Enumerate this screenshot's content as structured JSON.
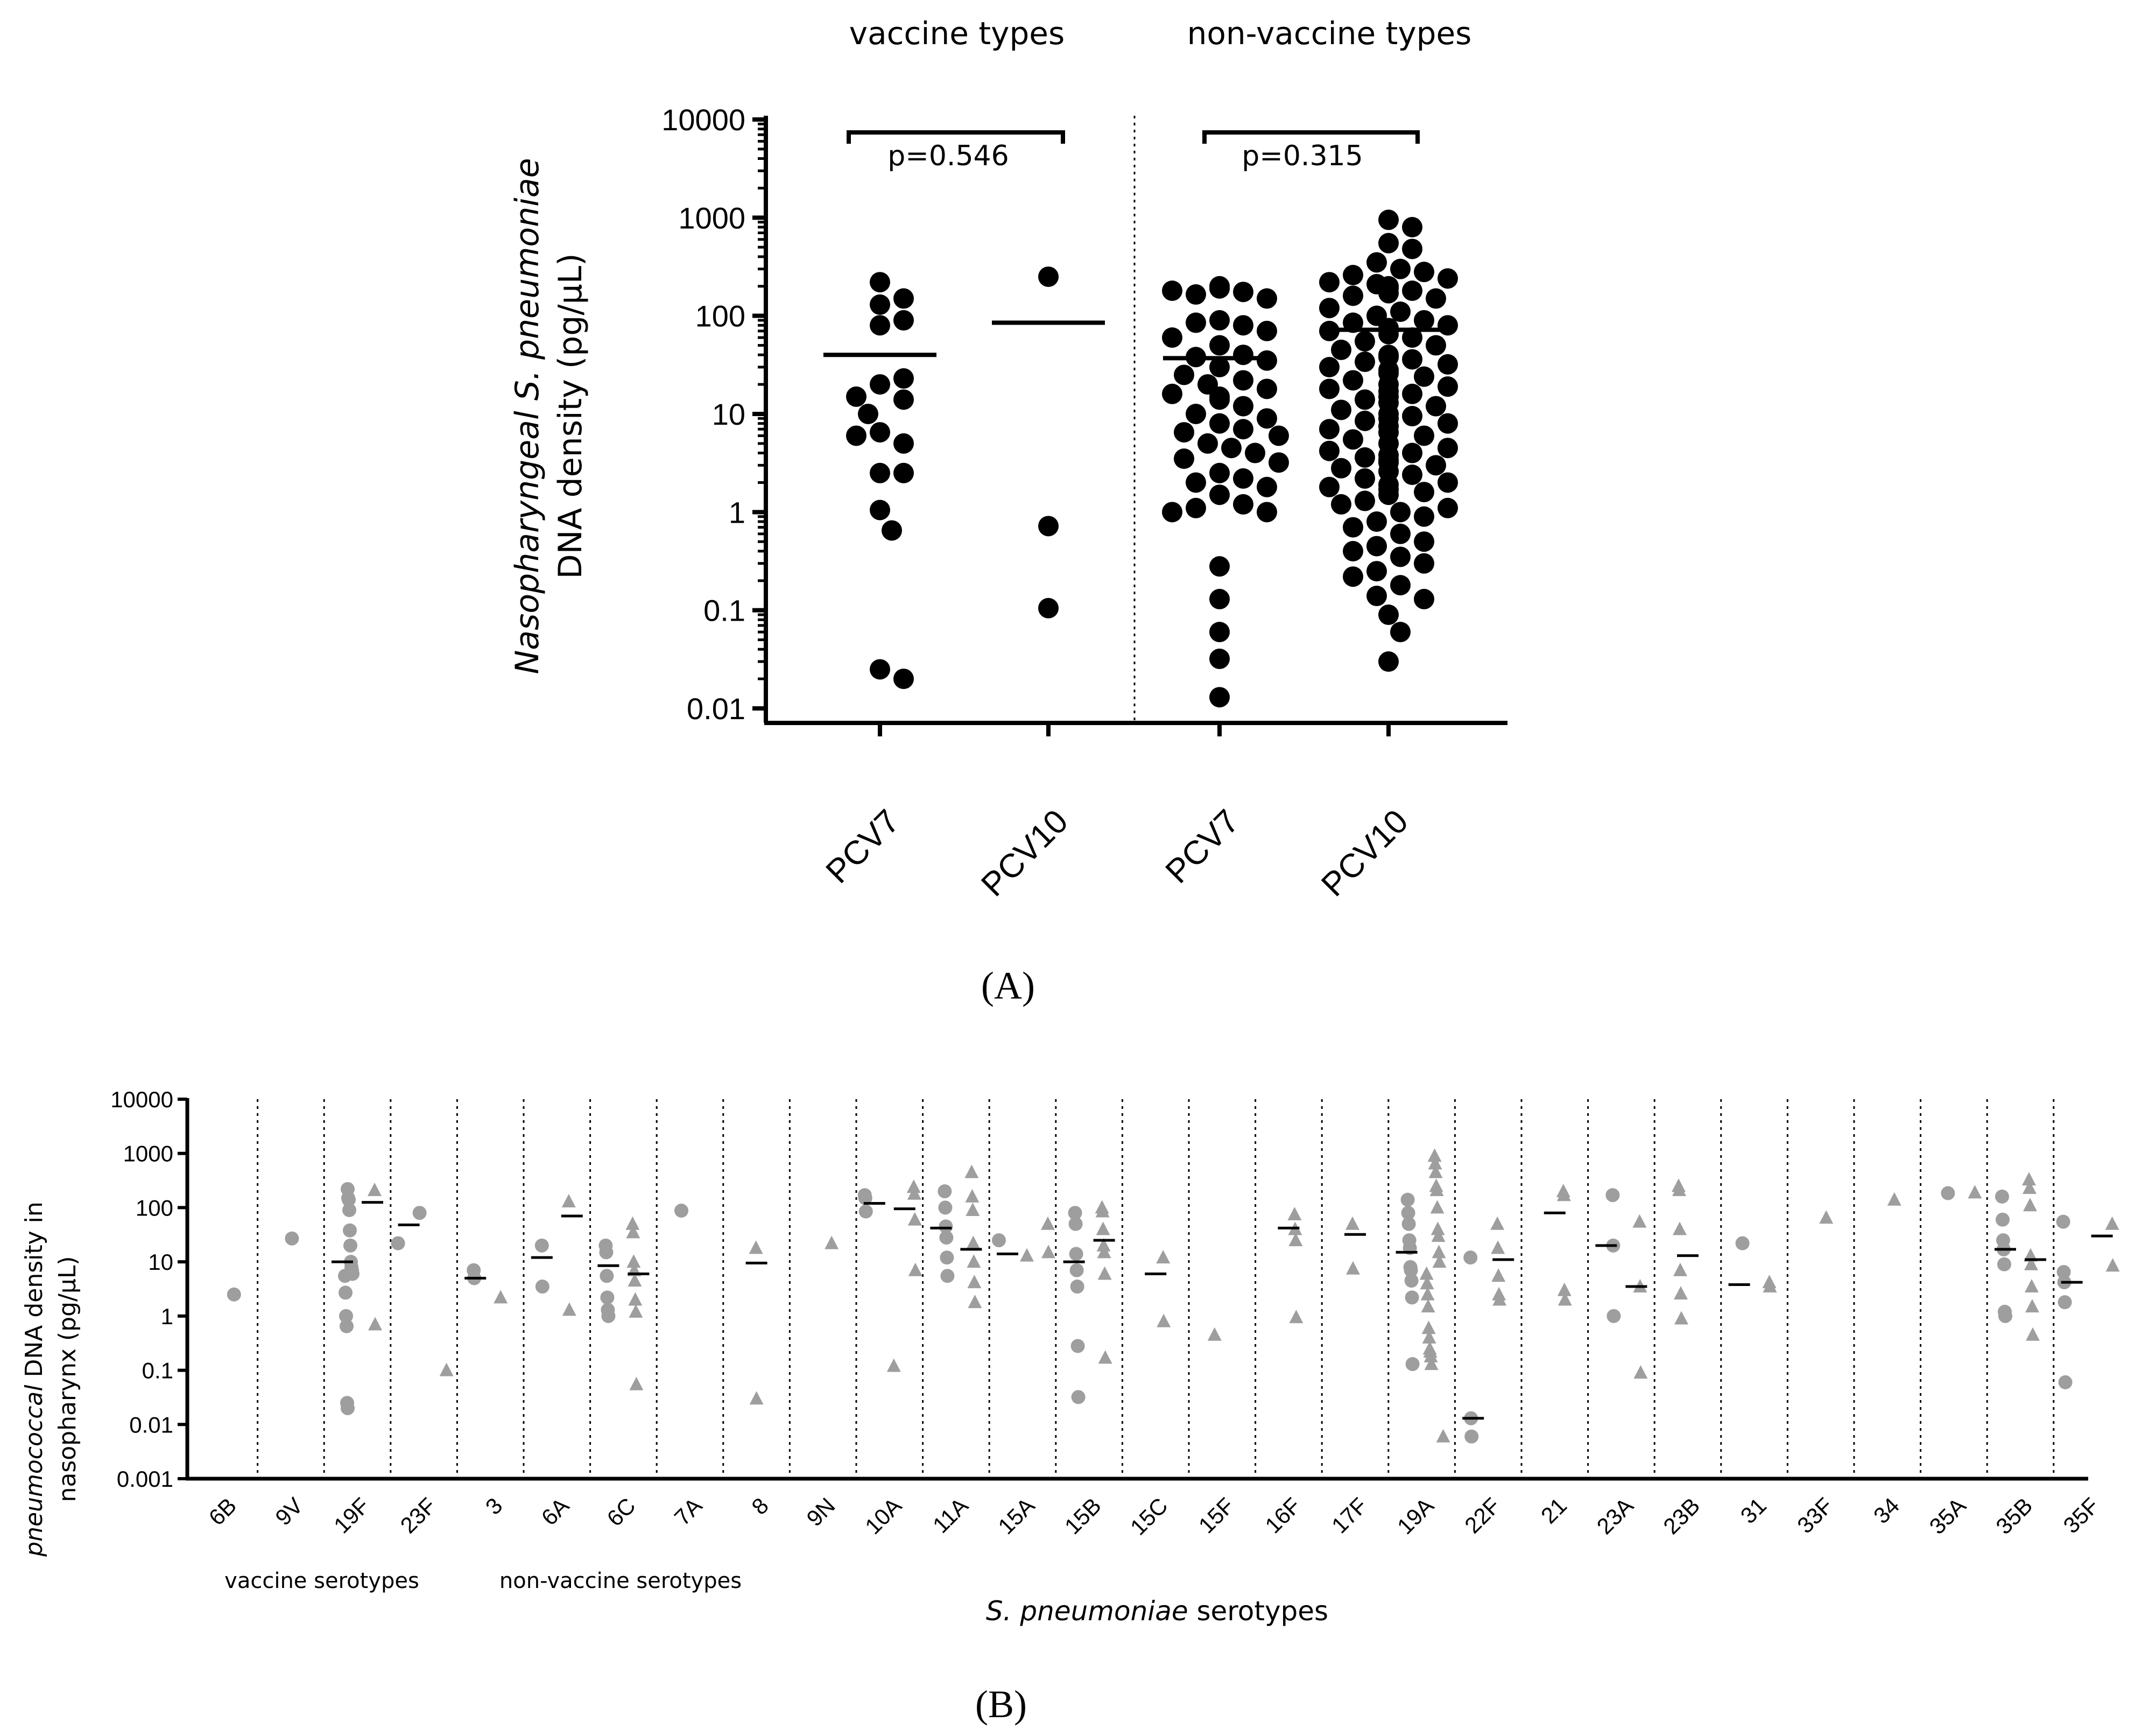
{
  "panel_a": {
    "group_labels": [
      "vaccine types",
      "non-vaccine types"
    ],
    "ylabel_italic": "Nasopharyngeal S. pneumoniae",
    "ylabel_plain": "DNA density (pg/µL)",
    "y_ticks": [
      "10000",
      "1000",
      "100",
      "10",
      "1",
      "0.1",
      "0.01"
    ],
    "categories": [
      "PCV7",
      "PCV10",
      "PCV7",
      "PCV10"
    ],
    "pvalues": [
      "p=0.546",
      "p=0.315"
    ],
    "caption": "(A)"
  },
  "panel_b": {
    "ylabel_italic": "pneumococcal",
    "ylabel_line1_rest": " DNA density in",
    "ylabel_line2": "nasopharynx (pg/µL)",
    "y_ticks": [
      "10000",
      "1000",
      "100",
      "10",
      "1",
      "0.1",
      "0.01",
      "0.001"
    ],
    "serotypes": [
      "6B",
      "9V",
      "19F",
      "23F",
      "3",
      "6A",
      "6C",
      "7A",
      "8",
      "9N",
      "10A",
      "11A",
      "15A",
      "15B",
      "15C",
      "15F",
      "16F",
      "17F",
      "19A",
      "22F",
      "21",
      "23A",
      "23B",
      "31",
      "33F",
      "34",
      "35A",
      "35B",
      "35F"
    ],
    "vaccine_label": "vaccine serotypes",
    "nonvaccine_label": "non-vaccine serotypes",
    "xlabel_italic": "S. pneumoniae",
    "xlabel_rest": " serotypes",
    "caption": "(B)"
  },
  "colors": {
    "dots_a": "#000000",
    "dots_b": "#9e9e9e"
  },
  "chart_data": [
    {
      "type": "scatter",
      "scale": "log",
      "ylim": [
        0.01,
        10000
      ],
      "categories": [
        "PCV7 (vaccine types)",
        "PCV10 (vaccine types)",
        "PCV7 (non-vaccine types)",
        "PCV10 (non-vaccine types)"
      ],
      "series": [
        {
          "values": [
            220,
            130,
            150,
            80,
            90,
            20,
            23,
            14,
            15,
            6.5,
            5,
            6,
            10,
            2.5,
            2.5,
            1.05,
            0.65,
            0.025,
            0.02
          ],
          "median": 40
        },
        {
          "values": [
            250,
            0.72,
            0.105
          ],
          "median": 85
        },
        {
          "values": [
            200,
            175,
            165,
            150,
            180,
            190,
            90,
            80,
            85,
            70,
            60,
            50,
            40,
            38,
            35,
            30,
            25,
            22,
            20,
            18,
            16,
            15,
            14,
            12,
            10,
            9,
            8,
            7,
            6.5,
            6,
            5,
            4.5,
            4,
            3.5,
            3.2,
            2.5,
            2.2,
            2,
            1.8,
            1.5,
            1.2,
            1.1,
            1.0,
            1.0,
            0.28,
            0.13,
            0.06,
            0.032,
            0.013
          ],
          "median": 37
        },
        {
          "values": [
            950,
            800,
            550,
            480,
            350,
            300,
            280,
            260,
            240,
            220,
            210,
            200,
            190,
            180,
            170,
            160,
            150,
            120,
            110,
            100,
            90,
            85,
            80,
            75,
            70,
            65,
            60,
            55,
            50,
            45,
            40,
            38,
            36,
            34,
            32,
            30,
            28,
            26,
            24,
            22,
            20,
            19,
            18,
            17,
            16,
            15,
            14,
            13,
            12,
            11,
            10,
            9.5,
            9,
            8.5,
            8,
            7.5,
            7,
            6.5,
            6,
            5.5,
            5,
            4.5,
            4.2,
            4,
            3.8,
            3.6,
            3.4,
            3.2,
            3,
            2.8,
            2.6,
            2.4,
            2.2,
            2,
            1.9,
            1.8,
            1.7,
            1.6,
            1.5,
            1.3,
            1.2,
            1.1,
            1.0,
            0.9,
            0.8,
            0.7,
            0.6,
            0.5,
            0.45,
            0.4,
            0.35,
            0.3,
            0.25,
            0.22,
            0.18,
            0.14,
            0.13,
            0.09,
            0.06,
            0.03
          ],
          "median": 72
        }
      ],
      "annotations": [
        "p=0.546",
        "p=0.315"
      ]
    },
    {
      "type": "scatter",
      "scale": "log",
      "ylim": [
        0.001,
        10000
      ],
      "categories": [
        "6B",
        "9V",
        "19F",
        "23F",
        "3",
        "6A",
        "6C",
        "7A",
        "8",
        "9N",
        "10A",
        "11A",
        "15A",
        "15B",
        "15C",
        "15F",
        "16F",
        "17F",
        "19A",
        "22F",
        "21",
        "23A",
        "23B",
        "31",
        "33F",
        "34",
        "35A",
        "35B",
        "35F"
      ],
      "series": [
        {
          "category": "6B",
          "circles": [
            2.5
          ],
          "triangles": []
        },
        {
          "category": "9V",
          "circles": [
            27
          ],
          "triangles": []
        },
        {
          "category": "19F",
          "circles": [
            220,
            150,
            140,
            90,
            38,
            20,
            10,
            8,
            7,
            6,
            5.5,
            2.7,
            1.0,
            0.65,
            0.025,
            0.02
          ],
          "triangles": [
            210,
            0.7
          ],
          "medians": [
            10,
            125
          ]
        },
        {
          "category": "23F",
          "circles": [
            80,
            22
          ],
          "triangles": [
            0.1
          ],
          "medians": [
            48
          ]
        },
        {
          "category": "3",
          "circles": [
            7,
            5
          ],
          "triangles": [
            2.2
          ],
          "medians": [
            5
          ]
        },
        {
          "category": "6A",
          "circles": [
            20,
            3.5
          ],
          "triangles": [
            130,
            1.3
          ],
          "medians": [
            12,
            70
          ]
        },
        {
          "category": "6C",
          "circles": [
            20,
            15,
            5.5,
            2.2,
            1.3,
            1.0
          ],
          "triangles": [
            50,
            35,
            10,
            7,
            4.5,
            2.0,
            1.2,
            0.055
          ],
          "medians": [
            8.5,
            6
          ]
        },
        {
          "category": "7A",
          "circles": [
            88
          ],
          "triangles": []
        },
        {
          "category": "8",
          "circles": [],
          "triangles": [
            18,
            0.03
          ],
          "medians": [
            9.5
          ]
        },
        {
          "category": "9N",
          "circles": [],
          "triangles": [
            22
          ]
        },
        {
          "category": "10A",
          "circles": [
            170,
            150,
            85
          ],
          "triangles": [
            240,
            180,
            60,
            7,
            0.12
          ],
          "medians": [
            120,
            95
          ]
        },
        {
          "category": "11A",
          "circles": [
            200,
            100,
            45,
            28,
            12,
            5.5
          ],
          "triangles": [
            450,
            160,
            90,
            22,
            10,
            4.2,
            1.8
          ],
          "medians": [
            42,
            17
          ]
        },
        {
          "category": "15A",
          "circles": [
            25
          ],
          "triangles": [
            50,
            15,
            13
          ],
          "medians": [
            14
          ]
        },
        {
          "category": "15B",
          "circles": [
            80,
            50,
            14,
            7,
            3.5,
            0.28,
            0.032
          ],
          "triangles": [
            100,
            85,
            40,
            20,
            15,
            6,
            0.17
          ],
          "medians": [
            10,
            25
          ]
        },
        {
          "category": "15C",
          "circles": [],
          "triangles": [
            12,
            0.8
          ],
          "medians": [
            6
          ]
        },
        {
          "category": "15F",
          "circles": [],
          "triangles": [
            0.45
          ]
        },
        {
          "category": "16F",
          "circles": [],
          "triangles": [
            75,
            40,
            25,
            0.95
          ],
          "medians": [
            42
          ]
        },
        {
          "category": "17F",
          "circles": [],
          "triangles": [
            50,
            7.5
          ],
          "medians": [
            32
          ]
        },
        {
          "category": "19A",
          "circles": [
            140,
            80,
            50,
            25,
            18,
            8,
            7,
            4.5,
            2.2,
            0.13
          ],
          "triangles": [
            900,
            650,
            450,
            250,
            210,
            100,
            40,
            30,
            15,
            10,
            6,
            4,
            2.5,
            1.5,
            0.6,
            0.4,
            0.25,
            0.22,
            0.18,
            0.13,
            0.006
          ],
          "medians": [
            15
          ]
        },
        {
          "category": "22F",
          "circles": [
            12,
            0.013,
            0.006
          ],
          "triangles": [
            50,
            18,
            5.5,
            2.5,
            2.0
          ],
          "medians": [
            0.013,
            11
          ]
        },
        {
          "category": "21",
          "circles": [],
          "triangles": [
            200,
            170,
            3,
            2.0
          ],
          "medians": [
            80
          ]
        },
        {
          "category": "23A",
          "circles": [
            170,
            20,
            1.0
          ],
          "triangles": [
            55,
            3.5,
            0.09
          ],
          "medians": [
            20,
            3.5
          ]
        },
        {
          "category": "23B",
          "circles": [],
          "triangles": [
            250,
            210,
            40,
            7,
            2.6,
            0.9
          ],
          "medians": [
            13
          ]
        },
        {
          "category": "31",
          "circles": [
            22
          ],
          "triangles": [
            4.2,
            3.5
          ],
          "medians": [
            3.8
          ]
        },
        {
          "category": "33F",
          "circles": [],
          "triangles": [
            65
          ]
        },
        {
          "category": "34",
          "circles": [],
          "triangles": [
            140
          ]
        },
        {
          "category": "35A",
          "circles": [
            185
          ],
          "triangles": [
            190
          ]
        },
        {
          "category": "35B",
          "circles": [
            160,
            60,
            25,
            17,
            9,
            1.2,
            1.0
          ],
          "triangles": [
            330,
            230,
            110,
            13,
            9,
            3.5,
            1.5,
            0.45
          ],
          "medians": [
            17,
            11
          ]
        },
        {
          "category": "35F",
          "circles": [
            55,
            6.5,
            4.2,
            1.8,
            0.06
          ],
          "triangles": [
            50,
            8.5
          ],
          "medians": [
            4.2,
            30
          ]
        }
      ]
    }
  ]
}
